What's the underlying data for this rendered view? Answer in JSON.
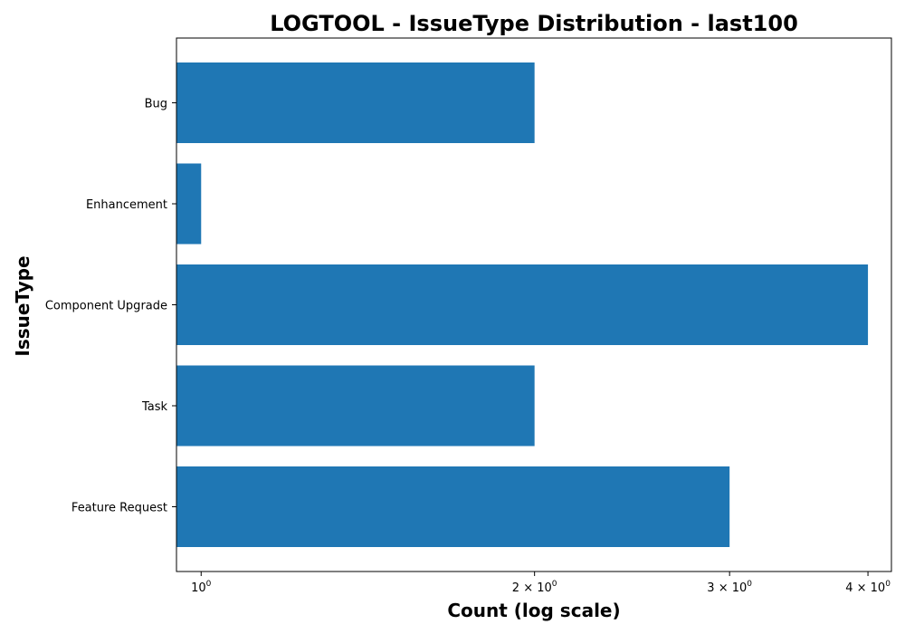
{
  "chart_data": {
    "type": "bar",
    "orientation": "horizontal",
    "title": "LOGTOOL - IssueType Distribution - last100",
    "xlabel": "Count (log scale)",
    "ylabel": "IssueType",
    "x_scale": "log",
    "xlim": [
      0.95,
      4.2
    ],
    "categories": [
      "Bug",
      "Enhancement",
      "Component Upgrade",
      "Task",
      "Feature Request"
    ],
    "values": [
      2,
      1,
      4,
      2,
      3
    ],
    "x_ticks": [
      {
        "value": 1,
        "base": "10",
        "exp": "0"
      },
      {
        "value": 2,
        "base": "2 × 10",
        "exp": "0"
      },
      {
        "value": 3,
        "base": "3 × 10",
        "exp": "0"
      },
      {
        "value": 4,
        "base": "4 × 10",
        "exp": "0"
      }
    ],
    "bar_color": "#1f77b4",
    "grid": false,
    "legend": "none"
  }
}
